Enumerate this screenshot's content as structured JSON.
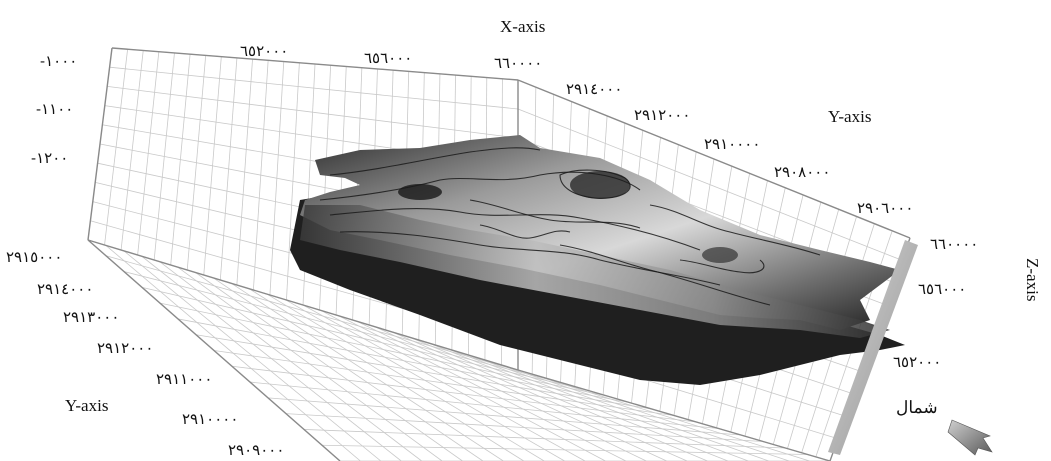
{
  "chart_data": {
    "type": "surface3d",
    "x_axis": {
      "title": "X-axis",
      "ticks": [
        "٦٥٢٠٠٠",
        "٦٥٦٠٠٠",
        "٦٦٠٠٠٠"
      ]
    },
    "y_axis_back": {
      "title": "Y-axis",
      "ticks": [
        "٢٩١٤٠٠٠",
        "٢٩١٢٠٠٠",
        "٢٩١٠٠٠٠",
        "٢٩٠٨٠٠٠",
        "٢٩٠٦٠٠٠"
      ]
    },
    "y_axis_front": {
      "title": "Y-axis",
      "ticks": [
        "٢٩١٥٠٠٠",
        "٢٩١٤٠٠٠",
        "٢٩١٣٠٠٠",
        "٢٩١٢٠٠٠",
        "٢٩١١٠٠٠",
        "٢٩١٠٠٠٠",
        "٢٩٠٩٠٠٠"
      ]
    },
    "z_axis": {
      "title": "Z-axis",
      "ticks": [
        "-١٠٠٠",
        "-١١٠٠",
        "-١٢٠٠"
      ]
    },
    "right_axis": {
      "ticks": [
        "٦٦٠٠٠٠",
        "٦٥٦٠٠٠",
        "٦٥٢٠٠٠"
      ]
    },
    "grid": true,
    "surface_shading": "grayscale",
    "contour_lines": true
  },
  "compass": {
    "label": "شمال",
    "icon": "north-arrow-icon"
  }
}
